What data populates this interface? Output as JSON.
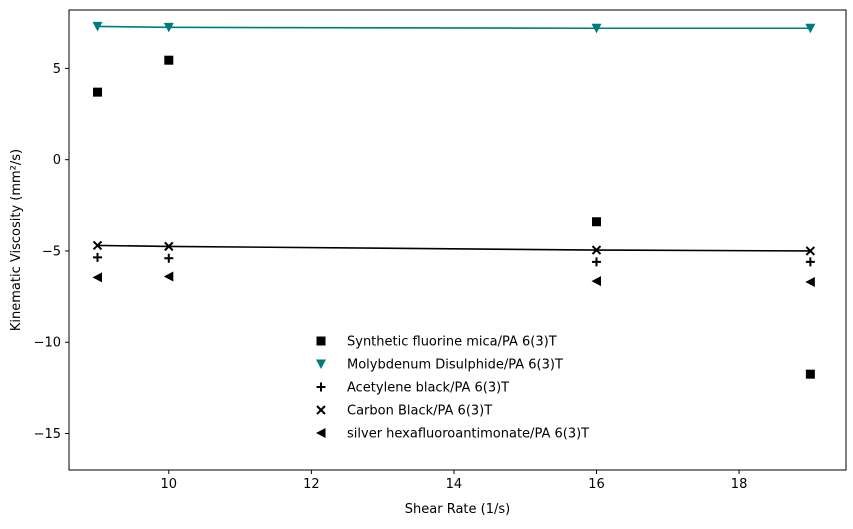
{
  "chart_data": {
    "type": "scatter",
    "xlabel": "Shear Rate (1/s)",
    "ylabel": "Kinematic Viscosity (mm²/s)",
    "xlim": [
      8.6,
      19.5
    ],
    "ylim": [
      -17,
      8.2
    ],
    "xticks": [
      10,
      12,
      14,
      16,
      18
    ],
    "yticks": [
      5,
      0,
      -5,
      -10,
      -15
    ],
    "grid": false,
    "legend_position": "bottom-center",
    "series": [
      {
        "name": "Synthetic fluorine mica/PA 6(3)T",
        "marker": "square",
        "color": "#000000",
        "x": [
          9,
          10,
          16,
          19
        ],
        "y": [
          3.7,
          5.45,
          -3.4,
          -11.75
        ],
        "line": false
      },
      {
        "name": "Molybdenum Disulphide/PA 6(3)T",
        "marker": "triangle-down",
        "color": "#007b7b",
        "x": [
          9,
          10,
          16,
          19
        ],
        "y": [
          7.3,
          7.25,
          7.2,
          7.2
        ],
        "line": true
      },
      {
        "name": "Acetylene black/PA 6(3)T",
        "marker": "plus",
        "color": "#000000",
        "x": [
          9,
          10,
          16,
          19
        ],
        "y": [
          -5.35,
          -5.4,
          -5.6,
          -5.6
        ],
        "line": false
      },
      {
        "name": "Carbon Black/PA 6(3)T",
        "marker": "x",
        "color": "#000000",
        "x": [
          9,
          10,
          16,
          19
        ],
        "y": [
          -4.7,
          -4.75,
          -4.95,
          -5.0
        ],
        "line": true
      },
      {
        "name": "silver hexafluoroantimonate/PA 6(3)T",
        "marker": "triangle-left",
        "color": "#000000",
        "x": [
          9,
          10,
          16,
          19
        ],
        "y": [
          -6.45,
          -6.4,
          -6.65,
          -6.7
        ],
        "line": false
      }
    ]
  }
}
